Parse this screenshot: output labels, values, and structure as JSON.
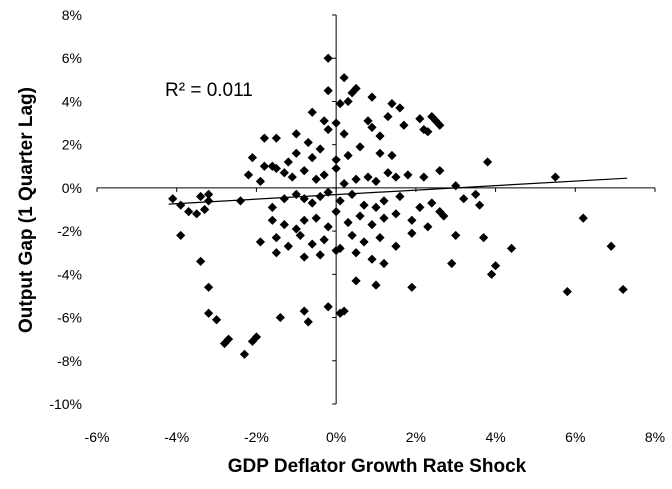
{
  "chart_data": {
    "type": "scatter",
    "xlabel": "GDP Deflator Growth Rate Shock",
    "ylabel": "Output Gap (1 Quarter Lag)",
    "annotation": "R² = 0.011",
    "xlim": [
      -6,
      8
    ],
    "ylim": [
      -10,
      8
    ],
    "xticks": [
      -6,
      -4,
      -2,
      0,
      2,
      4,
      6,
      8
    ],
    "yticks": [
      -10,
      -8,
      -6,
      -4,
      -2,
      0,
      2,
      4,
      6,
      8
    ],
    "xtick_labels": [
      "-6%",
      "-4%",
      "-2%",
      "0%",
      "2%",
      "4%",
      "6%",
      "8%"
    ],
    "ytick_labels": [
      "-10%",
      "-8%",
      "-6%",
      "-4%",
      "-2%",
      "0%",
      "2%",
      "4%",
      "6%",
      "8%"
    ],
    "grid": false,
    "marker": "diamond",
    "trendline": {
      "x": [
        -4.2,
        7.3
      ],
      "y": [
        -0.75,
        0.45
      ]
    },
    "points": [
      [
        -0.2,
        6.0
      ],
      [
        0.2,
        5.1
      ],
      [
        0.5,
        4.6
      ],
      [
        0.4,
        4.4
      ],
      [
        -0.2,
        4.5
      ],
      [
        0.3,
        4.0
      ],
      [
        0.1,
        3.9
      ],
      [
        0.9,
        4.2
      ],
      [
        1.4,
        3.9
      ],
      [
        1.6,
        3.7
      ],
      [
        -0.6,
        3.5
      ],
      [
        -0.3,
        3.1
      ],
      [
        0.0,
        3.0
      ],
      [
        0.8,
        3.1
      ],
      [
        1.3,
        3.3
      ],
      [
        2.1,
        3.2
      ],
      [
        2.4,
        3.3
      ],
      [
        2.5,
        3.1
      ],
      [
        2.6,
        2.9
      ],
      [
        1.7,
        2.9
      ],
      [
        -1.5,
        2.3
      ],
      [
        -1.8,
        2.3
      ],
      [
        -1.0,
        2.5
      ],
      [
        -0.7,
        2.1
      ],
      [
        -0.2,
        2.7
      ],
      [
        0.2,
        2.5
      ],
      [
        0.9,
        2.8
      ],
      [
        1.1,
        2.4
      ],
      [
        2.2,
        2.7
      ],
      [
        2.3,
        2.6
      ],
      [
        -2.1,
        1.4
      ],
      [
        -1.8,
        1.0
      ],
      [
        -1.6,
        1.0
      ],
      [
        -1.2,
        1.2
      ],
      [
        -1.0,
        1.6
      ],
      [
        -0.6,
        1.4
      ],
      [
        -0.4,
        1.8
      ],
      [
        0.0,
        1.3
      ],
      [
        0.3,
        1.5
      ],
      [
        0.6,
        1.9
      ],
      [
        1.1,
        1.6
      ],
      [
        1.4,
        1.5
      ],
      [
        -2.2,
        0.6
      ],
      [
        -1.9,
        0.3
      ],
      [
        -1.5,
        0.9
      ],
      [
        -1.3,
        0.7
      ],
      [
        -1.1,
        0.5
      ],
      [
        -0.8,
        0.8
      ],
      [
        -0.5,
        0.4
      ],
      [
        -0.3,
        0.6
      ],
      [
        0.0,
        0.9
      ],
      [
        0.2,
        0.2
      ],
      [
        0.5,
        0.4
      ],
      [
        0.8,
        0.5
      ],
      [
        1.0,
        0.3
      ],
      [
        1.3,
        0.7
      ],
      [
        1.5,
        0.5
      ],
      [
        1.8,
        0.6
      ],
      [
        2.2,
        0.5
      ],
      [
        2.6,
        0.8
      ],
      [
        3.0,
        0.1
      ],
      [
        3.5,
        -0.3
      ],
      [
        3.8,
        1.2
      ],
      [
        5.5,
        0.5
      ],
      [
        -4.1,
        -0.5
      ],
      [
        -3.9,
        -0.8
      ],
      [
        -3.7,
        -1.1
      ],
      [
        -3.5,
        -1.2
      ],
      [
        -3.3,
        -1.0
      ],
      [
        -3.2,
        -0.6
      ],
      [
        -3.4,
        -0.4
      ],
      [
        -3.2,
        -0.3
      ],
      [
        -2.4,
        -0.6
      ],
      [
        -1.6,
        -0.9
      ],
      [
        -1.3,
        -0.5
      ],
      [
        -1.0,
        -0.3
      ],
      [
        -0.8,
        -0.5
      ],
      [
        -0.6,
        -0.7
      ],
      [
        -0.4,
        -0.4
      ],
      [
        -0.2,
        -0.2
      ],
      [
        0.1,
        -0.6
      ],
      [
        0.4,
        -0.3
      ],
      [
        0.7,
        -0.8
      ],
      [
        1.0,
        -0.9
      ],
      [
        1.2,
        -0.6
      ],
      [
        1.6,
        -0.4
      ],
      [
        2.1,
        -0.9
      ],
      [
        2.4,
        -0.7
      ],
      [
        2.6,
        -1.1
      ],
      [
        3.2,
        -0.5
      ],
      [
        3.6,
        -0.8
      ],
      [
        -3.9,
        -2.2
      ],
      [
        -1.6,
        -1.5
      ],
      [
        -1.3,
        -1.7
      ],
      [
        -1.0,
        -1.9
      ],
      [
        -0.8,
        -1.5
      ],
      [
        -0.5,
        -1.4
      ],
      [
        -0.2,
        -1.8
      ],
      [
        0.0,
        -1.1
      ],
      [
        0.3,
        -1.6
      ],
      [
        0.6,
        -1.3
      ],
      [
        0.9,
        -1.7
      ],
      [
        1.2,
        -1.4
      ],
      [
        1.5,
        -1.2
      ],
      [
        1.9,
        -1.5
      ],
      [
        2.3,
        -1.8
      ],
      [
        2.7,
        -1.3
      ],
      [
        -1.9,
        -2.5
      ],
      [
        -1.5,
        -2.3
      ],
      [
        -1.2,
        -2.7
      ],
      [
        -0.9,
        -2.2
      ],
      [
        -0.6,
        -2.6
      ],
      [
        -0.3,
        -2.4
      ],
      [
        0.1,
        -2.8
      ],
      [
        0.4,
        -2.2
      ],
      [
        0.7,
        -2.5
      ],
      [
        1.1,
        -2.3
      ],
      [
        1.5,
        -2.7
      ],
      [
        1.9,
        -2.1
      ],
      [
        3.0,
        -2.2
      ],
      [
        3.7,
        -2.3
      ],
      [
        4.4,
        -2.8
      ],
      [
        6.2,
        -1.4
      ],
      [
        -3.4,
        -3.4
      ],
      [
        -1.5,
        -3.0
      ],
      [
        -0.8,
        -3.2
      ],
      [
        -0.4,
        -3.1
      ],
      [
        0.0,
        -2.9
      ],
      [
        0.5,
        -3.0
      ],
      [
        0.9,
        -3.3
      ],
      [
        1.2,
        -3.5
      ],
      [
        2.9,
        -3.5
      ],
      [
        3.9,
        -4.0
      ],
      [
        4.0,
        -3.6
      ],
      [
        -3.2,
        -4.6
      ],
      [
        0.5,
        -4.3
      ],
      [
        1.0,
        -4.5
      ],
      [
        1.9,
        -4.6
      ],
      [
        -3.2,
        -5.8
      ],
      [
        -3.0,
        -6.1
      ],
      [
        -1.4,
        -6.0
      ],
      [
        -0.8,
        -5.7
      ],
      [
        -0.7,
        -6.2
      ],
      [
        -0.2,
        -5.5
      ],
      [
        0.2,
        -5.7
      ],
      [
        0.1,
        -5.8
      ],
      [
        -2.7,
        -7.0
      ],
      [
        -2.8,
        -7.2
      ],
      [
        -2.3,
        -7.7
      ],
      [
        -2.0,
        -6.9
      ],
      [
        -2.1,
        -7.1
      ],
      [
        5.8,
        -4.8
      ],
      [
        6.9,
        -2.7
      ],
      [
        7.2,
        -4.7
      ]
    ]
  }
}
